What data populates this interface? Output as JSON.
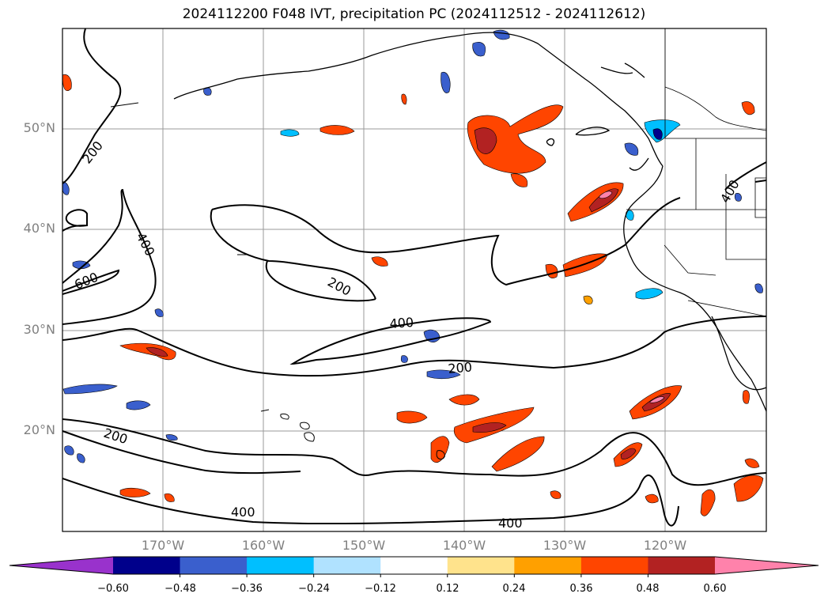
{
  "title": "2024112200 F048 IVT, precipitation PC (2024112512 - 2024112612)",
  "lat_labels": [
    "50°N",
    "40°N",
    "30°N",
    "20°N"
  ],
  "lon_labels": [
    "170°W",
    "160°W",
    "150°W",
    "140°W",
    "130°W",
    "120°W"
  ],
  "contour_labels": [
    "200",
    "400",
    "600",
    "400",
    "200",
    "400",
    "200",
    "200",
    "400",
    "400",
    "200"
  ],
  "colorbar": {
    "ticks": [
      "−0.60",
      "−0.48",
      "−0.36",
      "−0.24",
      "−0.12",
      "0.12",
      "0.24",
      "0.36",
      "0.48",
      "0.60"
    ],
    "colors": [
      "#9932cc",
      "#00008b",
      "#3a5fcd",
      "#00bfff",
      "#b0e2ff",
      "#ffffff",
      "#ffe38c",
      "#ffa000",
      "#ff4500",
      "#b22222",
      "#ff82ab"
    ]
  },
  "icons": {
    "coastlines": "coastline-lines",
    "contours": "ivt-contour-lines"
  }
}
